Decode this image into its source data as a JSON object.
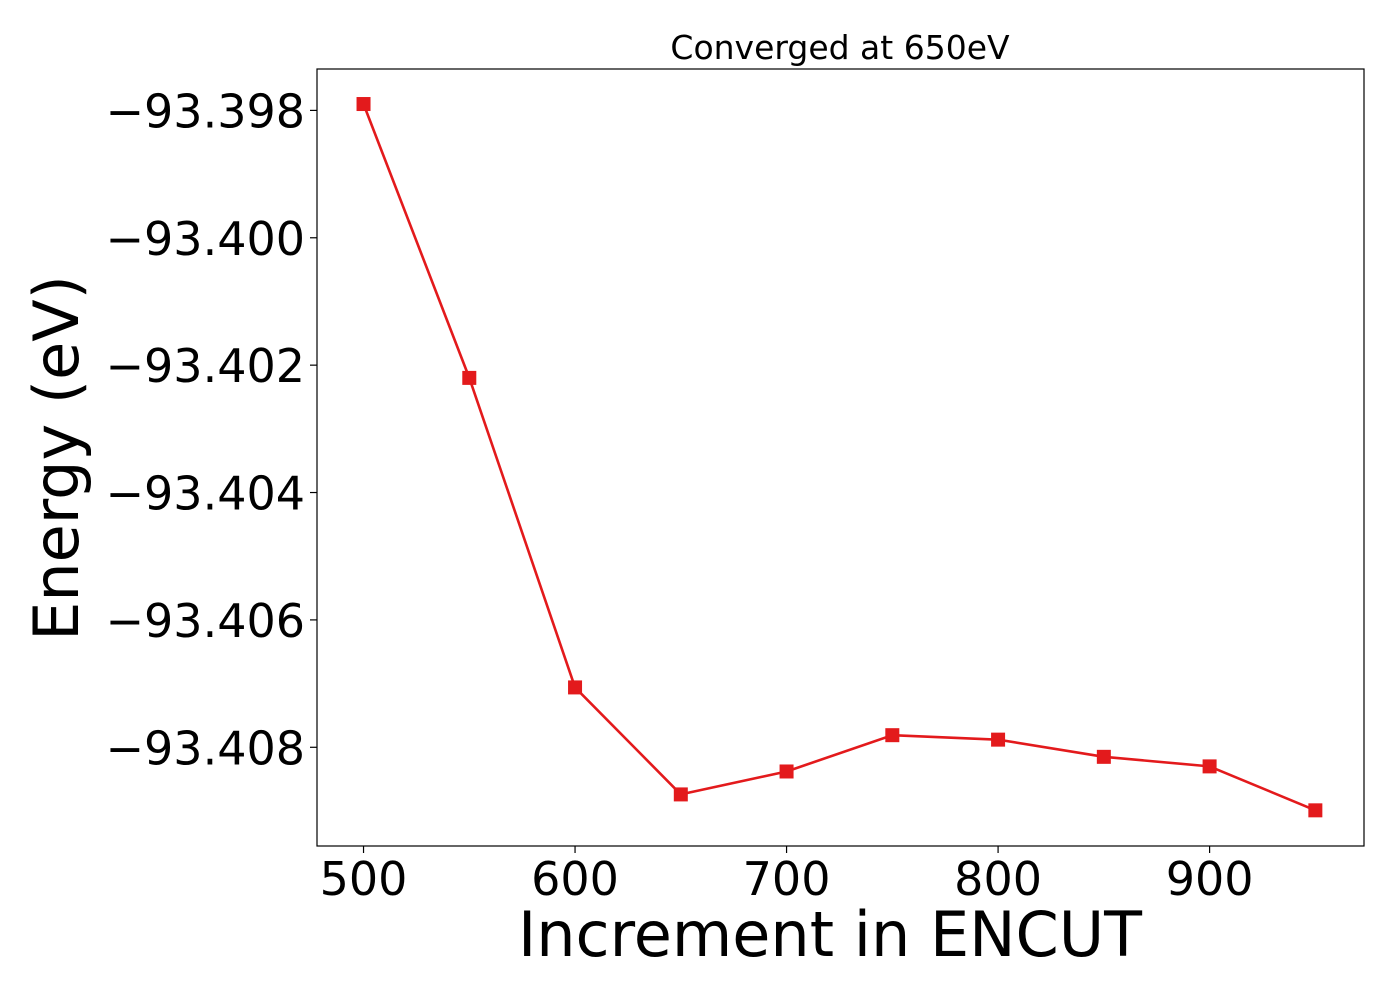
{
  "chart_data": {
    "type": "line",
    "title": "Converged at 650eV",
    "xlabel": "Increment in ENCUT",
    "ylabel": "Energy (eV)",
    "xlim": [
      478,
      973
    ],
    "ylim": [
      -93.40955,
      -93.39735
    ],
    "x_ticks": [
      500,
      600,
      700,
      800,
      900
    ],
    "x_tick_labels": [
      "500",
      "600",
      "700",
      "800",
      "900"
    ],
    "y_ticks": [
      -93.398,
      -93.4,
      -93.402,
      -93.404,
      -93.406,
      -93.408
    ],
    "y_tick_labels": [
      "−93.398",
      "−93.400",
      "−93.402",
      "−93.404",
      "−93.406",
      "−93.408"
    ],
    "grid": false,
    "series": [
      {
        "color": "#e31a1c",
        "marker": "square",
        "x": [
          500,
          550,
          600,
          650,
          700,
          750,
          800,
          850,
          900,
          950
        ],
        "y": [
          -93.3979,
          -93.4022,
          -93.40706,
          -93.40874,
          -93.40838,
          -93.40781,
          -93.40788,
          -93.40815,
          -93.4083,
          -93.40899
        ]
      }
    ]
  }
}
